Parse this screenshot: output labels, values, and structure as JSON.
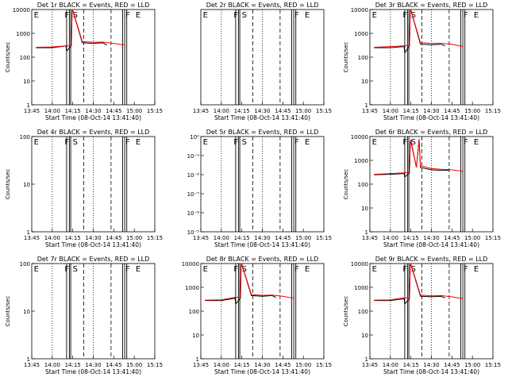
{
  "colors": {
    "background": "#ffffff",
    "axes": "#000000",
    "events": "#000000",
    "lld": "#ff0000"
  },
  "chart_data": [
    {
      "title": "Det 1r BLACK = Events, RED = LLD",
      "type": "line",
      "xlabel": "Start Time (08-Oct-14 13:41:40)",
      "ylabel": "Counts/sec",
      "x_tick_labels": [
        "13:45",
        "14:00",
        "14:15",
        "14:30",
        "14:45",
        "15:00",
        "15:15"
      ],
      "y_tick_labels": [
        "1",
        "10",
        "100",
        "1000",
        "10000"
      ],
      "ylim": [
        1,
        10000
      ],
      "markers": [
        "E",
        "F",
        "S",
        "F",
        "E"
      ],
      "series": [
        {
          "color": "#000000",
          "x_minutes": [
            3,
            15,
            25,
            25.5,
            29,
            29.5,
            30,
            37,
            45,
            52,
            55
          ],
          "values": [
            250,
            250,
            300,
            180,
            300,
            8000,
            9000,
            400,
            380,
            400,
            320
          ]
        },
        {
          "color": "#ff0000",
          "x_minutes": [
            3,
            15,
            25,
            29,
            29.5,
            30,
            37,
            45,
            52,
            60,
            68
          ],
          "values": [
            260,
            270,
            300,
            300,
            9000,
            9500,
            450,
            420,
            430,
            380,
            320
          ]
        }
      ]
    },
    {
      "title": "Det 2r BLACK = Events, RED = LLD",
      "type": "line",
      "xlabel": "Start Time (08-Oct-14 13:41:40)",
      "ylabel": "",
      "x_tick_labels": [
        "13:45",
        "14:00",
        "14:15",
        "14:30",
        "14:45",
        "15:00",
        "15:15"
      ],
      "y_tick_labels": [],
      "ylim": [
        1,
        10000
      ],
      "markers": [
        "E",
        "F",
        "S",
        "F",
        "E"
      ],
      "series": []
    },
    {
      "title": "Det 3r BLACK = Events, RED = LLD",
      "type": "line",
      "xlabel": "Start Time (08-Oct-14 13:41:40)",
      "ylabel": "Counts/sec",
      "x_tick_labels": [
        "13:45",
        "14:00",
        "14:15",
        "14:30",
        "14:45",
        "15:00",
        "15:15"
      ],
      "y_tick_labels": [
        "1",
        "10",
        "100",
        "1000",
        "10000"
      ],
      "ylim": [
        1,
        10000
      ],
      "markers": [
        "E",
        "F",
        "S",
        "F",
        "E"
      ],
      "series": [
        {
          "color": "#000000",
          "x_minutes": [
            3,
            15,
            25,
            25.5,
            29,
            29.5,
            30,
            37,
            45,
            52,
            55
          ],
          "values": [
            250,
            250,
            280,
            150,
            300,
            7000,
            9000,
            350,
            330,
            350,
            300
          ]
        },
        {
          "color": "#ff0000",
          "x_minutes": [
            3,
            15,
            25,
            29,
            29.5,
            30,
            37,
            45,
            52,
            60,
            68
          ],
          "values": [
            260,
            280,
            300,
            320,
            9000,
            9500,
            400,
            380,
            380,
            350,
            280
          ]
        }
      ]
    },
    {
      "title": "Det 4r BLACK = Events, RED = LLD",
      "type": "line",
      "xlabel": "Start Time (08-Oct-14 13:41:40)",
      "ylabel": "Counts/sec",
      "x_tick_labels": [
        "13:45",
        "14:00",
        "14:15",
        "14:30",
        "14:45",
        "15:00",
        "15:15"
      ],
      "y_tick_labels": [
        "1",
        "10",
        "100"
      ],
      "ylim": [
        1,
        100
      ],
      "markers": [
        "E",
        "F",
        "S",
        "F",
        "E"
      ],
      "series": []
    },
    {
      "title": "Det 5r BLACK = Events, RED = LLD",
      "type": "line",
      "xlabel": "Start Time (08-Oct-14 13:41:40)",
      "ylabel": "",
      "x_tick_labels": [
        "13:45",
        "14:00",
        "14:15",
        "14:30",
        "14:45",
        "15:00",
        "15:15"
      ],
      "y_tick_labels": [
        "10⁻⁵",
        "10⁻⁶",
        "10⁻⁷",
        "10⁻⁸",
        "10⁻⁹",
        "10⁰"
      ],
      "ylim": [
        1e-09,
        1
      ],
      "markers": [
        "E",
        "F",
        "S",
        "F",
        "E"
      ],
      "series": []
    },
    {
      "title": "Det 6r BLACK = Events, RED = LLD",
      "type": "line",
      "xlabel": "Start Time (08-Oct-14 13:41:40)",
      "ylabel": "Counts/sec",
      "x_tick_labels": [
        "13:45",
        "14:00",
        "14:15",
        "14:30",
        "14:45",
        "15:00",
        "15:15"
      ],
      "y_tick_labels": [
        "1",
        "10",
        "100",
        "1000",
        "10000"
      ],
      "ylim": [
        1,
        10000
      ],
      "markers": [
        "E",
        "F",
        "S",
        "F",
        "E"
      ],
      "series": [
        {
          "color": "#000000",
          "x_minutes": [
            3,
            15,
            25,
            25.5,
            29,
            29.5,
            30,
            34,
            36,
            37,
            45,
            52,
            58
          ],
          "values": [
            250,
            260,
            280,
            200,
            300,
            5000,
            6000,
            500,
            7000,
            500,
            400,
            380,
            380
          ]
        },
        {
          "color": "#ff0000",
          "x_minutes": [
            3,
            15,
            25,
            29,
            29.5,
            30,
            34,
            36,
            37,
            45,
            52,
            60,
            68
          ],
          "values": [
            260,
            280,
            300,
            320,
            6000,
            7000,
            500,
            8000,
            600,
            450,
            420,
            400,
            350
          ]
        }
      ]
    },
    {
      "title": "Det 7r BLACK = Events, RED = LLD",
      "type": "line",
      "xlabel": "Start Time (08-Oct-14 13:41:40)",
      "ylabel": "Counts/sec",
      "x_tick_labels": [
        "13:45",
        "14:00",
        "14:15",
        "14:30",
        "14:45",
        "15:00",
        "15:15"
      ],
      "y_tick_labels": [
        "1",
        "10",
        "100"
      ],
      "ylim": [
        1,
        100
      ],
      "markers": [
        "E",
        "F",
        "S",
        "F",
        "E"
      ],
      "series": []
    },
    {
      "title": "Det 8r BLACK = Events, RED = LLD",
      "type": "line",
      "xlabel": "Start Time (08-Oct-14 13:41:40)",
      "ylabel": "",
      "x_tick_labels": [
        "13:45",
        "14:00",
        "14:15",
        "14:30",
        "14:45",
        "15:00",
        "15:15"
      ],
      "y_tick_labels": [
        "1",
        "10",
        "100",
        "1000",
        "10000"
      ],
      "ylim": [
        1,
        10000
      ],
      "markers": [
        "E",
        "F",
        "S",
        "F",
        "E"
      ],
      "series": [
        {
          "color": "#000000",
          "x_minutes": [
            3,
            15,
            25,
            25.5,
            29,
            29.5,
            30,
            37,
            45,
            52,
            55
          ],
          "values": [
            280,
            280,
            350,
            200,
            350,
            8000,
            9000,
            450,
            420,
            450,
            380
          ]
        },
        {
          "color": "#ff0000",
          "x_minutes": [
            3,
            15,
            25,
            29,
            29.5,
            30,
            37,
            45,
            52,
            60,
            68
          ],
          "values": [
            290,
            300,
            380,
            380,
            9000,
            9500,
            500,
            460,
            470,
            420,
            350
          ]
        }
      ]
    },
    {
      "title": "Det 9r BLACK = Events, RED = LLD",
      "type": "line",
      "xlabel": "Start Time (08-Oct-14 13:41:40)",
      "ylabel": "Counts/sec",
      "x_tick_labels": [
        "13:45",
        "14:00",
        "14:15",
        "14:30",
        "14:45",
        "15:00",
        "15:15"
      ],
      "y_tick_labels": [
        "1",
        "10",
        "100",
        "1000",
        "10000"
      ],
      "ylim": [
        1,
        10000
      ],
      "markers": [
        "E",
        "F",
        "S",
        "F",
        "E"
      ],
      "series": [
        {
          "color": "#000000",
          "x_minutes": [
            3,
            15,
            25,
            25.5,
            29,
            29.5,
            30,
            37,
            45,
            52,
            55
          ],
          "values": [
            280,
            280,
            330,
            200,
            330,
            8000,
            9000,
            420,
            400,
            420,
            360
          ]
        },
        {
          "color": "#ff0000",
          "x_minutes": [
            3,
            15,
            25,
            29,
            29.5,
            30,
            37,
            45,
            52,
            60,
            68
          ],
          "values": [
            290,
            300,
            360,
            360,
            9000,
            9500,
            480,
            440,
            450,
            400,
            330
          ]
        }
      ]
    }
  ]
}
